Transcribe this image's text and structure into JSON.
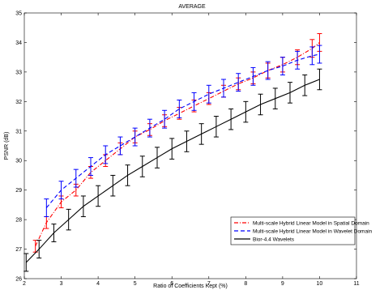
{
  "chart_data": {
    "type": "line",
    "title": "AVERAGE",
    "xlabel": "Ratio of Coefficients Kept (%)",
    "ylabel": "PSNR (dB)",
    "xlim": [
      2,
      11
    ],
    "ylim": [
      26,
      35
    ],
    "x_ticks": [
      "2",
      "3",
      "4",
      "5",
      "6",
      "7",
      "8",
      "9",
      "10",
      "11"
    ],
    "y_ticks": [
      "26",
      "27",
      "28",
      "29",
      "30",
      "31",
      "32",
      "33",
      "34",
      "35"
    ],
    "grid": false,
    "legend_position": "lower-right",
    "series": [
      {
        "name": "Multi-scale Hybrid Linear Model in Spatial Domain",
        "color": "#ff0000",
        "line_style": "dash-dot",
        "x": [
          2.3,
          2.6,
          3.0,
          3.4,
          3.8,
          4.2,
          4.6,
          5.0,
          5.4,
          5.8,
          6.2,
          6.6,
          7.0,
          7.4,
          7.8,
          8.2,
          8.6,
          9.0,
          9.4,
          9.8,
          10.0
        ],
        "y": [
          27.1,
          27.9,
          28.6,
          29.0,
          29.6,
          30.0,
          30.4,
          30.8,
          31.05,
          31.35,
          31.6,
          31.85,
          32.1,
          32.35,
          32.6,
          32.8,
          33.05,
          33.25,
          33.5,
          33.8,
          34.0
        ],
        "error": [
          0.2,
          0.2,
          0.2,
          0.2,
          0.2,
          0.2,
          0.2,
          0.2,
          0.2,
          0.2,
          0.2,
          0.2,
          0.2,
          0.2,
          0.2,
          0.2,
          0.25,
          0.25,
          0.25,
          0.3,
          0.3
        ]
      },
      {
        "name": "Multi-scale Hybrid Linear Model in Wavelet Domain",
        "color": "#0000ff",
        "line_style": "dashed",
        "x": [
          2.6,
          3.0,
          3.4,
          3.8,
          4.2,
          4.6,
          5.0,
          5.4,
          5.8,
          6.2,
          6.6,
          7.0,
          7.4,
          7.8,
          8.2,
          8.6,
          9.0,
          9.4,
          9.8,
          10.0
        ],
        "y": [
          28.4,
          29.0,
          29.4,
          29.8,
          30.2,
          30.5,
          30.8,
          31.1,
          31.4,
          31.75,
          32.0,
          32.25,
          32.45,
          32.65,
          32.85,
          33.05,
          33.2,
          33.4,
          33.55,
          33.6
        ],
        "error": [
          0.3,
          0.3,
          0.3,
          0.3,
          0.3,
          0.3,
          0.3,
          0.3,
          0.3,
          0.3,
          0.3,
          0.3,
          0.3,
          0.3,
          0.3,
          0.3,
          0.3,
          0.3,
          0.3,
          0.3
        ]
      },
      {
        "name": "Bior-4.4 Wavelets",
        "color": "#000000",
        "line_style": "solid",
        "x": [
          2.05,
          2.4,
          2.8,
          3.2,
          3.6,
          4.0,
          4.4,
          4.8,
          5.2,
          5.6,
          6.0,
          6.4,
          6.8,
          7.2,
          7.6,
          8.0,
          8.4,
          8.8,
          9.2,
          9.6,
          10.0
        ],
        "y": [
          26.55,
          27.0,
          27.55,
          28.0,
          28.45,
          28.8,
          29.15,
          29.5,
          29.8,
          30.1,
          30.4,
          30.65,
          30.9,
          31.15,
          31.4,
          31.65,
          31.9,
          32.1,
          32.3,
          32.55,
          32.75
        ],
        "error": [
          0.3,
          0.3,
          0.3,
          0.35,
          0.35,
          0.35,
          0.35,
          0.35,
          0.35,
          0.35,
          0.35,
          0.35,
          0.35,
          0.35,
          0.35,
          0.35,
          0.35,
          0.35,
          0.35,
          0.35,
          0.35
        ]
      }
    ]
  }
}
